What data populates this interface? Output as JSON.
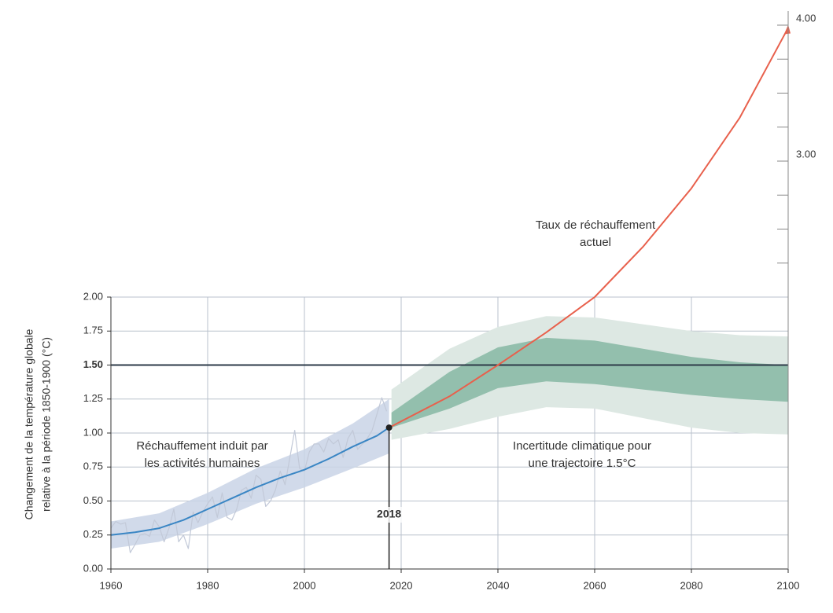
{
  "chart_data": {
    "type": "line",
    "y_label": [
      "Changement de la température globale",
      "relative à la période 1850-1900 (°C)"
    ],
    "xlim": [
      1960,
      2100
    ],
    "xticks": [
      1960,
      1980,
      2000,
      2020,
      2040,
      2060,
      2080,
      2100
    ],
    "ylim": [
      0,
      4
    ],
    "yticks": [
      {
        "value": 0,
        "label": "0.00"
      },
      {
        "value": 0.25,
        "label": "0.25"
      },
      {
        "value": 0.5,
        "label": "0.50"
      },
      {
        "value": 0.75,
        "label": "0.75"
      },
      {
        "value": 1,
        "label": "1.00"
      },
      {
        "value": 1.25,
        "label": "1.25"
      },
      {
        "value": 1.5,
        "label": "1.50"
      },
      {
        "value": 1.75,
        "label": "1.75"
      },
      {
        "value": 2,
        "label": "2.00"
      }
    ],
    "y_right_ticks": [
      {
        "value": 3,
        "label": "3.00"
      },
      {
        "value": 4,
        "label": "4.00"
      }
    ],
    "y_right_minor_ticks": [
      2.25,
      2.5,
      2.75,
      3.25,
      3.5,
      3.75
    ],
    "grid": true,
    "reference_line": 1.5,
    "bands": [
      {
        "color": "#dde8e3",
        "x": [
          2018,
          2030,
          2040,
          2050,
          2060,
          2070,
          2080,
          2090,
          2100
        ],
        "low": [
          0.95,
          1.03,
          1.12,
          1.19,
          1.18,
          1.11,
          1.04,
          1.0,
          0.99
        ],
        "high": [
          1.32,
          1.62,
          1.78,
          1.86,
          1.85,
          1.8,
          1.75,
          1.72,
          1.71
        ]
      },
      {
        "color": "#93bfad",
        "x": [
          2018,
          2030,
          2040,
          2050,
          2060,
          2070,
          2080,
          2090,
          2100
        ],
        "low": [
          1.04,
          1.18,
          1.33,
          1.38,
          1.36,
          1.32,
          1.28,
          1.25,
          1.23
        ],
        "high": [
          1.15,
          1.45,
          1.63,
          1.7,
          1.68,
          1.62,
          1.56,
          1.52,
          1.5
        ]
      },
      {
        "color": "#c9d3e6",
        "x": [
          1960,
          1970,
          1980,
          1990,
          2000,
          2010,
          2017.5
        ],
        "low": [
          0.15,
          0.2,
          0.33,
          0.48,
          0.6,
          0.74,
          0.85
        ],
        "high": [
          0.35,
          0.41,
          0.56,
          0.74,
          0.88,
          1.07,
          1.25
        ]
      }
    ],
    "series": [
      {
        "color": "#c2c9d8",
        "x": [
          1960,
          1961,
          1962,
          1963,
          1964,
          1965,
          1966,
          1967,
          1968,
          1969,
          1970,
          1971,
          1972,
          1973,
          1974,
          1975,
          1976,
          1977,
          1978,
          1979,
          1980,
          1981,
          1982,
          1983,
          1984,
          1985,
          1986,
          1987,
          1988,
          1989,
          1990,
          1991,
          1992,
          1993,
          1994,
          1995,
          1996,
          1997,
          1998,
          1999,
          2000,
          2001,
          2002,
          2003,
          2004,
          2005,
          2006,
          2007,
          2008,
          2009,
          2010,
          2011,
          2012,
          2013,
          2014,
          2015,
          2016,
          2017
        ],
        "values": [
          0.3,
          0.35,
          0.33,
          0.34,
          0.12,
          0.18,
          0.25,
          0.26,
          0.24,
          0.36,
          0.31,
          0.2,
          0.3,
          0.44,
          0.2,
          0.25,
          0.15,
          0.42,
          0.34,
          0.42,
          0.48,
          0.53,
          0.38,
          0.56,
          0.38,
          0.36,
          0.44,
          0.58,
          0.6,
          0.52,
          0.69,
          0.66,
          0.46,
          0.5,
          0.58,
          0.72,
          0.62,
          0.82,
          1.02,
          0.74,
          0.72,
          0.86,
          0.92,
          0.92,
          0.86,
          0.96,
          0.92,
          0.95,
          0.82,
          0.96,
          1.02,
          0.88,
          0.92,
          0.96,
          1.02,
          1.14,
          1.26,
          1.16
        ]
      },
      {
        "color": "#3a86c4",
        "x": [
          1960,
          1965,
          1970,
          1975,
          1980,
          1985,
          1990,
          1995,
          2000,
          2005,
          2010,
          2015,
          2017.5
        ],
        "values": [
          0.25,
          0.27,
          0.3,
          0.36,
          0.44,
          0.52,
          0.6,
          0.67,
          0.73,
          0.81,
          0.9,
          0.98,
          1.04
        ]
      },
      {
        "color": "#e8604c",
        "x": [
          2017.5,
          2030,
          2040,
          2050,
          2060,
          2070,
          2080,
          2090,
          2100
        ],
        "values": [
          1.04,
          1.27,
          1.5,
          1.74,
          2.0,
          2.37,
          2.8,
          3.32,
          3.98
        ]
      }
    ],
    "marker": {
      "label": "2018",
      "x": 2017.5,
      "y": 1.04
    },
    "annotations": [
      {
        "lines": [
          "Réchauffement induit par",
          "les activités humaines"
        ],
        "color": "#3a86c4"
      },
      {
        "lines": [
          "Incertitude climatique pour",
          "une trajectoire 1.5°C"
        ],
        "color": "#5a9e84"
      },
      {
        "lines": [
          "Taux de réchauffement",
          "actuel"
        ],
        "color": "#e8604c"
      }
    ]
  }
}
